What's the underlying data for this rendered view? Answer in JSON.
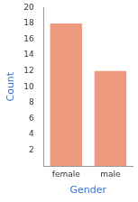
{
  "chart_data": {
    "type": "bar",
    "x_label": "Gender",
    "y_label": "Count",
    "categories": [
      "female",
      "male"
    ],
    "values": [
      18,
      12
    ],
    "color": "#ee9a7e",
    "ylim": [
      0,
      20
    ],
    "yticks": [
      2,
      4,
      6,
      8,
      10,
      12,
      14,
      16,
      18,
      20
    ],
    "grid": false
  }
}
